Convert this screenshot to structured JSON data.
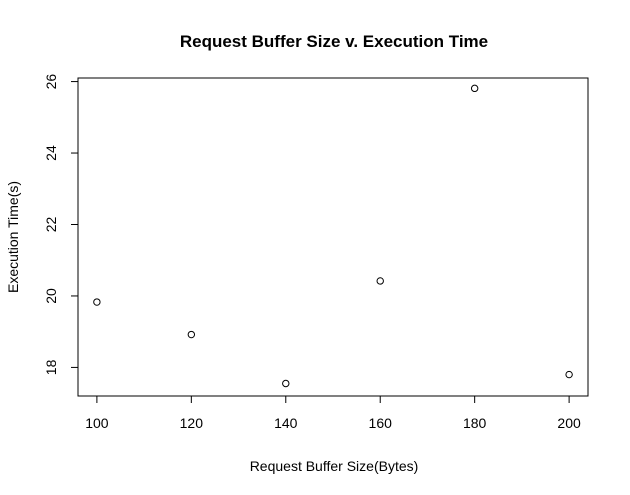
{
  "chart_data": {
    "type": "scatter",
    "title": "Request Buffer Size v. Execution Time",
    "xlabel": "Request Buffer Size(Bytes)",
    "ylabel": "Execution Time(s)",
    "xlim": [
      96,
      204
    ],
    "ylim": [
      17.2,
      26.1
    ],
    "xticks": [
      100,
      120,
      140,
      160,
      180,
      200
    ],
    "yticks": [
      18,
      20,
      22,
      24,
      26
    ],
    "grid": false,
    "legend": "none",
    "marker": "open-circle",
    "points": [
      {
        "x": 100,
        "y": 19.83
      },
      {
        "x": 120,
        "y": 18.92
      },
      {
        "x": 140,
        "y": 17.55
      },
      {
        "x": 160,
        "y": 20.42
      },
      {
        "x": 180,
        "y": 25.81
      },
      {
        "x": 200,
        "y": 17.8
      }
    ]
  }
}
